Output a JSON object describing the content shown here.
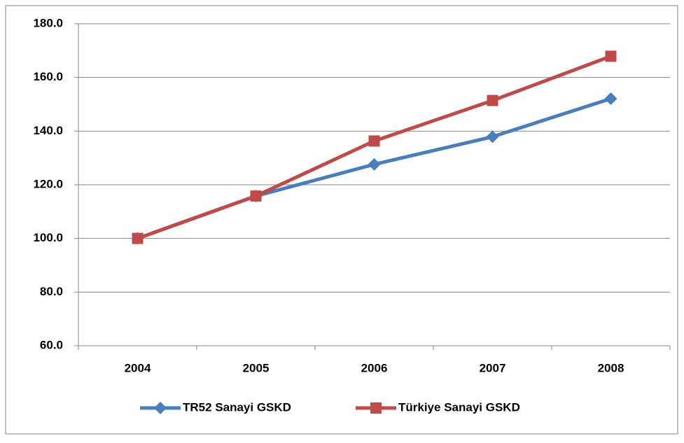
{
  "chart_data": {
    "type": "line",
    "categories": [
      "2004",
      "2005",
      "2006",
      "2007",
      "2008"
    ],
    "series": [
      {
        "name": "TR52 Sanayi GSKD",
        "color": "#4a7ebb",
        "marker": "diamond",
        "values": [
          100,
          115.8,
          127.6,
          137.9,
          152.1
        ]
      },
      {
        "name": "Türkiye Sanayi GSKD",
        "color": "#be4b48",
        "marker": "square",
        "values": [
          100,
          115.8,
          136.3,
          151.4,
          167.9
        ]
      }
    ],
    "ylim": [
      60,
      180
    ],
    "yticks": [
      {
        "value": 60,
        "label": "60.0"
      },
      {
        "value": 80,
        "label": "80.0"
      },
      {
        "value": 100,
        "label": "100.0"
      },
      {
        "value": 120,
        "label": "120.0"
      },
      {
        "value": 140,
        "label": "140.0"
      },
      {
        "value": 160,
        "label": "160.0"
      },
      {
        "value": 180,
        "label": "180.0"
      }
    ],
    "grid": true,
    "legend": "bottom"
  }
}
